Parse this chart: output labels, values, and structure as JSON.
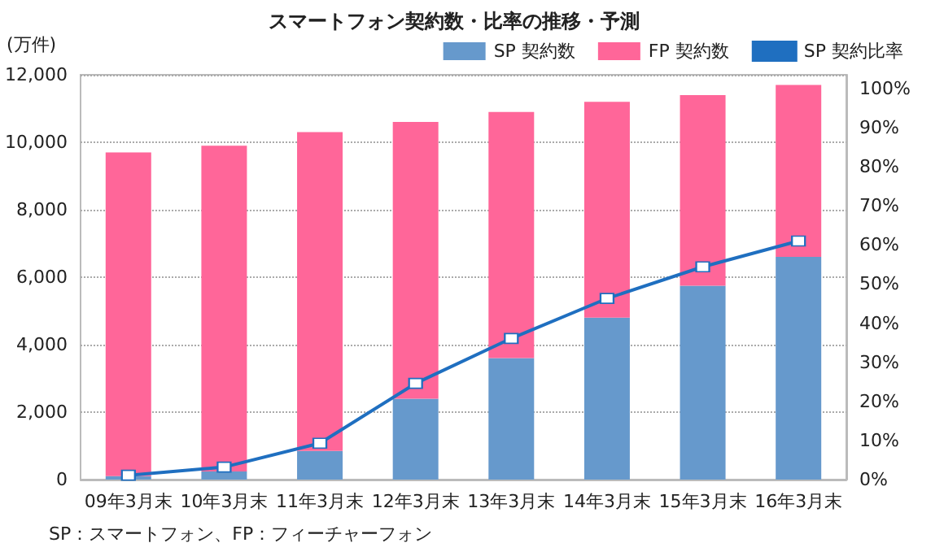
{
  "chart_data": {
    "type": "bar",
    "title": "スマートフォン契約数・比率の推移・予測",
    "ylabel": "(万件)",
    "annotations": [
      "SP：スマートフォン、FP：フィーチャーフォン"
    ],
    "categories": [
      "09年3月末",
      "10年3月末",
      "11年3月末",
      "12年3月末",
      "13年3月末",
      "14年3月末",
      "15年3月末",
      "16年3月末"
    ],
    "stacked": true,
    "series": [
      {
        "name": "SP 契約数",
        "color": "#6699cc",
        "values": [
          100,
          240,
          850,
          2400,
          3600,
          4800,
          5750,
          6600
        ]
      },
      {
        "name": "FP 契約数",
        "color": "#ff6699",
        "values": [
          9600,
          9660,
          9450,
          8200,
          7300,
          6400,
          5650,
          5100
        ]
      },
      {
        "name": "SP 契約比率",
        "type": "line",
        "axis": "y2",
        "color": "#1f6fc0",
        "marker": "square",
        "values": [
          1.1,
          3.2,
          9.3,
          24.6,
          36.1,
          46.3,
          54.4,
          61
        ]
      }
    ],
    "ylim": [
      0,
      12000
    ],
    "yticks": [
      0,
      {
        "value": 2000,
        "label": "2,000"
      },
      {
        "value": 4000,
        "label": "4,000"
      },
      {
        "value": 6000,
        "label": "6,000"
      },
      {
        "value": 8000,
        "label": "8,000"
      },
      {
        "value": 10000,
        "label": "10,000"
      },
      {
        "value": 12000,
        "label": "12,000"
      }
    ],
    "y2lim": [
      0,
      103.5
    ],
    "y2ticks": [
      {
        "value": 0,
        "label": "0%"
      },
      {
        "value": 10,
        "label": "10%"
      },
      {
        "value": 20,
        "label": "20%"
      },
      {
        "value": 30,
        "label": "30%"
      },
      {
        "value": 40,
        "label": "40%"
      },
      {
        "value": 50,
        "label": "50%"
      },
      {
        "value": 60,
        "label": "60%"
      },
      {
        "value": 70,
        "label": "70%"
      },
      {
        "value": 80,
        "label": "80%"
      },
      {
        "value": 90,
        "label": "90%"
      },
      {
        "value": 100,
        "label": "100%"
      }
    ],
    "grid": "y",
    "legend": "top right"
  }
}
